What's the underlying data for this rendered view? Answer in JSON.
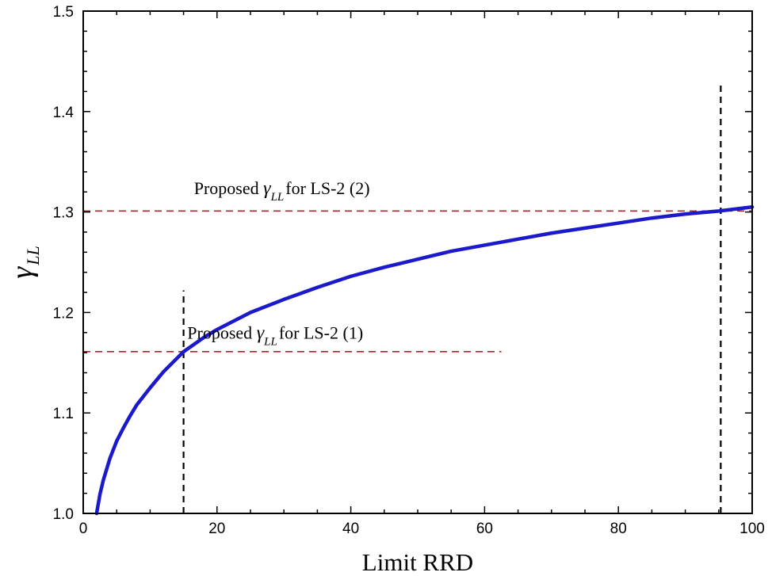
{
  "chart_data": {
    "type": "line",
    "xlabel": "Limit RRD",
    "ylabel": {
      "symbol": "γ",
      "subscript": "LL"
    },
    "xlim": [
      0,
      100
    ],
    "ylim": [
      1.0,
      1.5
    ],
    "x_ticks": [
      {
        "value": 0,
        "label": "0"
      },
      {
        "value": 20,
        "label": "20"
      },
      {
        "value": 40,
        "label": "40"
      },
      {
        "value": 60,
        "label": "60"
      },
      {
        "value": 80,
        "label": "80"
      },
      {
        "value": 100,
        "label": "100"
      }
    ],
    "y_ticks": [
      {
        "value": 1.0,
        "label": "1.0"
      },
      {
        "value": 1.1,
        "label": "1.1"
      },
      {
        "value": 1.2,
        "label": "1.2"
      },
      {
        "value": 1.3,
        "label": "1.3"
      },
      {
        "value": 1.4,
        "label": "1.4"
      },
      {
        "value": 1.5,
        "label": "1.5"
      }
    ],
    "x_minor_step": 5,
    "y_minor_step": 0.02,
    "grid": false,
    "series": [
      {
        "color": "#1a1acc",
        "x": [
          2,
          2.5,
          3,
          4,
          5,
          6,
          7,
          8,
          10,
          12,
          15,
          18,
          20,
          25,
          30,
          35,
          40,
          45,
          50,
          55,
          60,
          65,
          70,
          75,
          80,
          85,
          90,
          95,
          100
        ],
        "y": [
          1.0,
          1.019,
          1.033,
          1.055,
          1.072,
          1.085,
          1.097,
          1.108,
          1.125,
          1.141,
          1.161,
          1.175,
          1.183,
          1.2,
          1.213,
          1.225,
          1.236,
          1.245,
          1.253,
          1.261,
          1.267,
          1.273,
          1.279,
          1.284,
          1.289,
          1.294,
          1.298,
          1.301,
          1.305
        ]
      }
    ],
    "reference_lines": [
      {
        "orientation": "horizontal",
        "value": 1.161,
        "from": 0,
        "to": 62.5,
        "color": "#a52a2a",
        "style": "dashed"
      },
      {
        "orientation": "horizontal",
        "value": 1.301,
        "from": 0,
        "to": 100,
        "color": "#a52a2a",
        "style": "dashed"
      },
      {
        "orientation": "vertical",
        "value": 15,
        "from": 1.0,
        "to": 1.222,
        "color": "#000000",
        "style": "dashed"
      },
      {
        "orientation": "vertical",
        "value": 95.3,
        "from": 1.0,
        "to": 1.428,
        "color": "#000000",
        "style": "dashed"
      }
    ],
    "annotations": [
      {
        "prefix": "Proposed ",
        "symbol": "γ",
        "subscript": "LL",
        "suffix": "for LS-2 (1)",
        "x": 28.7,
        "y": 1.174
      },
      {
        "prefix": "Proposed ",
        "symbol": "γ",
        "subscript": "LL",
        "suffix": "for LS-2 (2)",
        "x": 29.7,
        "y": 1.318
      }
    ]
  }
}
